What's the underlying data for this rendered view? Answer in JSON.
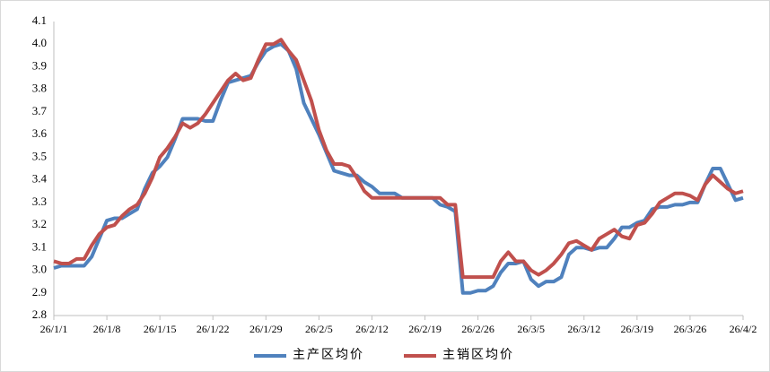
{
  "chart_data": {
    "type": "line",
    "categories": [
      "26/1/1",
      null,
      null,
      null,
      null,
      null,
      null,
      "26/1/8",
      null,
      null,
      null,
      null,
      null,
      null,
      "26/1/15",
      null,
      null,
      null,
      null,
      null,
      null,
      "26/1/22",
      null,
      null,
      null,
      null,
      null,
      null,
      "26/1/29",
      null,
      null,
      null,
      null,
      null,
      null,
      "26/2/5",
      null,
      null,
      null,
      null,
      null,
      null,
      "26/2/12",
      null,
      null,
      null,
      null,
      null,
      null,
      "26/2/19",
      null,
      null,
      null,
      null,
      null,
      null,
      "26/2/26",
      null,
      null,
      null,
      null,
      null,
      null,
      "26/3/5",
      null,
      null,
      null,
      null,
      null,
      null,
      "26/3/12",
      null,
      null,
      null,
      null,
      null,
      null,
      "26/3/19",
      null,
      null,
      null,
      null,
      null,
      null,
      "26/3/26",
      null,
      null,
      null,
      null,
      null,
      null,
      "26/4/2"
    ],
    "series": [
      {
        "name": "主产区均价",
        "color": "#4f81bd",
        "values": [
          3.01,
          3.02,
          3.02,
          3.02,
          3.02,
          3.06,
          3.14,
          3.22,
          3.23,
          3.23,
          3.25,
          3.27,
          3.36,
          3.43,
          3.46,
          3.5,
          3.58,
          3.67,
          3.67,
          3.67,
          3.66,
          3.66,
          3.75,
          3.83,
          3.84,
          3.85,
          3.86,
          3.92,
          3.97,
          3.99,
          4.0,
          3.97,
          3.89,
          3.74,
          3.67,
          3.6,
          3.52,
          3.44,
          3.43,
          3.42,
          3.42,
          3.39,
          3.37,
          3.34,
          3.34,
          3.34,
          3.32,
          3.32,
          3.32,
          3.32,
          3.32,
          3.29,
          3.28,
          3.26,
          2.9,
          2.9,
          2.91,
          2.91,
          2.93,
          2.99,
          3.03,
          3.03,
          3.04,
          2.96,
          2.93,
          2.95,
          2.95,
          2.97,
          3.07,
          3.1,
          3.1,
          3.09,
          3.1,
          3.1,
          3.14,
          3.19,
          3.19,
          3.21,
          3.22,
          3.27,
          3.28,
          3.28,
          3.29,
          3.29,
          3.3,
          3.3,
          3.38,
          3.45,
          3.45,
          3.38,
          3.31,
          3.32
        ]
      },
      {
        "name": "主销区均价",
        "color": "#c0504d",
        "values": [
          3.04,
          3.03,
          3.03,
          3.05,
          3.05,
          3.11,
          3.16,
          3.19,
          3.2,
          3.24,
          3.27,
          3.29,
          3.34,
          3.41,
          3.5,
          3.54,
          3.59,
          3.65,
          3.63,
          3.65,
          3.69,
          3.74,
          3.79,
          3.84,
          3.87,
          3.84,
          3.85,
          3.93,
          4.0,
          4.0,
          4.02,
          3.97,
          3.93,
          3.84,
          3.75,
          3.62,
          3.53,
          3.47,
          3.47,
          3.46,
          3.41,
          3.35,
          3.32,
          3.32,
          3.32,
          3.32,
          3.32,
          3.32,
          3.32,
          3.32,
          3.32,
          3.32,
          3.29,
          3.29,
          2.97,
          2.97,
          2.97,
          2.97,
          2.97,
          3.04,
          3.08,
          3.04,
          3.04,
          3.0,
          2.98,
          3.0,
          3.03,
          3.07,
          3.12,
          3.13,
          3.11,
          3.09,
          3.14,
          3.16,
          3.18,
          3.15,
          3.14,
          3.2,
          3.21,
          3.25,
          3.3,
          3.32,
          3.34,
          3.34,
          3.33,
          3.31,
          3.38,
          3.42,
          3.39,
          3.36,
          3.34,
          3.35
        ]
      }
    ],
    "ylim": [
      2.8,
      4.1
    ],
    "yticks": [
      2.8,
      2.9,
      {
        "value": 3,
        "label": "3.0"
      },
      3.1,
      3.2,
      3.3,
      3.4,
      3.5,
      3.6,
      3.7,
      3.8,
      3.9,
      {
        "value": 4,
        "label": "4.0"
      },
      4.1
    ],
    "grid": false,
    "legend": "bottom"
  }
}
